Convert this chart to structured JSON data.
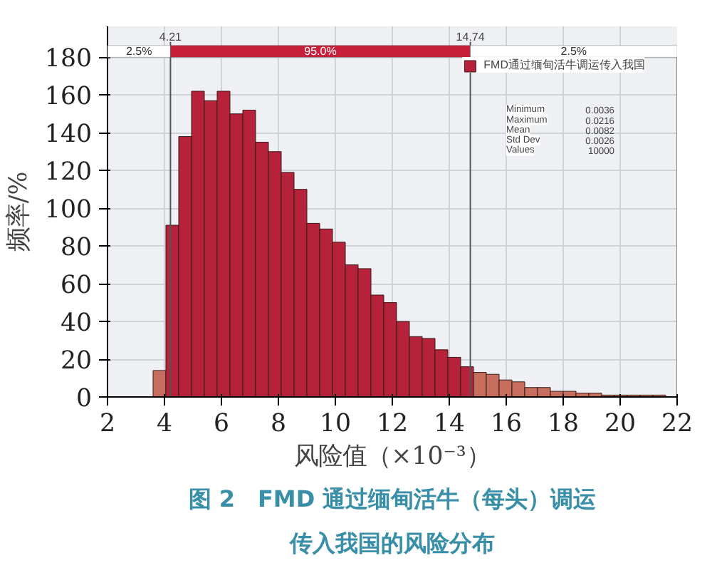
{
  "chart_data": {
    "type": "histogram",
    "title": "图 2　FMD 通过缅甸活牛（每头）调运传入我国的风险分布",
    "xlabel": "风险值（×10⁻³）",
    "ylabel": "频率/%",
    "bins": [
      3.6,
      4.05,
      4.5,
      4.95,
      5.4,
      5.85,
      6.3,
      6.75,
      7.2,
      7.65,
      8.1,
      8.55,
      9.0,
      9.45,
      9.9,
      10.35,
      10.8,
      11.25,
      11.7,
      12.15,
      12.6,
      13.05,
      13.5,
      13.95,
      14.4,
      14.85,
      15.3,
      15.75,
      16.2,
      16.65,
      17.1,
      17.55,
      18.0,
      18.45,
      18.9,
      19.35,
      19.8,
      20.25,
      20.7,
      21.15,
      21.6
    ],
    "series": [
      {
        "name": "FMD通过缅甸活牛调运传入我国",
        "color": "#b5223a",
        "values": [
          14,
          91,
          138,
          162,
          157,
          162,
          150,
          152,
          135,
          130,
          119,
          110,
          92,
          89,
          82,
          70,
          68,
          54,
          50,
          40,
          32,
          31,
          25,
          21,
          16,
          13,
          12,
          9,
          8,
          5,
          5,
          3,
          3,
          2,
          2,
          1,
          1,
          1,
          1,
          1
        ],
        "colors": [
          "#c86e5e",
          "#b5223a",
          "#b5223a",
          "#b5223a",
          "#b5223a",
          "#b5223a",
          "#b5223a",
          "#b5223a",
          "#b5223a",
          "#b5223a",
          "#b5223a",
          "#b5223a",
          "#b5223a",
          "#b5223a",
          "#b5223a",
          "#b5223a",
          "#b5223a",
          "#b5223a",
          "#b5223a",
          "#b5223a",
          "#b5223a",
          "#b5223a",
          "#b5223a",
          "#b5223a",
          "#b5223a",
          "#c86e5e",
          "#c86e5e",
          "#c86e5e",
          "#c86e5e",
          "#c86e5e",
          "#c86e5e",
          "#c86e5e",
          "#c86e5e",
          "#c86e5e",
          "#c86e5e",
          "#c86e5e",
          "#c86e5e",
          "#c86e5e",
          "#c86e5e",
          "#c86e5e"
        ]
      }
    ],
    "xlim": [
      2,
      22
    ],
    "xticks": [
      2,
      4,
      6,
      8,
      10,
      12,
      14,
      16,
      18,
      20,
      22
    ],
    "ylim": [
      0,
      180
    ],
    "yticks": [
      0,
      20,
      40,
      60,
      80,
      100,
      120,
      140,
      160,
      180
    ],
    "ref_lines": [
      {
        "axis": "x",
        "value": 4.21,
        "label": "4.21",
        "color": "#555555"
      },
      {
        "axis": "x",
        "value": 14.74,
        "label": "14.74",
        "color": "#555555"
      }
    ],
    "annotations": [
      "2.5%",
      "95.0%",
      "2.5%",
      "Minimum 0.0036",
      "Maximum 0.0216",
      "Mean 0.0082",
      "Std Dev 0.0026",
      "Values 10000"
    ],
    "grid": true,
    "legend": "top right"
  }
}
